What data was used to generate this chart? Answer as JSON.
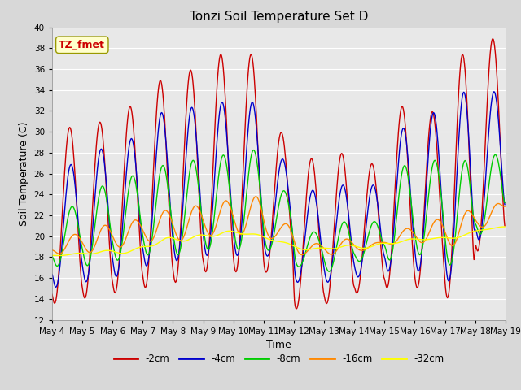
{
  "title": "Tonzi Soil Temperature Set D",
  "xlabel": "Time",
  "ylabel": "Soil Temperature (C)",
  "annotation_text": "TZ_fmet",
  "annotation_color": "#cc0000",
  "annotation_bg": "#ffffcc",
  "ylim": [
    12,
    40
  ],
  "yticks": [
    12,
    14,
    16,
    18,
    20,
    22,
    24,
    26,
    28,
    30,
    32,
    34,
    36,
    38,
    40
  ],
  "line_colors": {
    "-2cm": "#cc0000",
    "-4cm": "#0000cc",
    "-8cm": "#00cc00",
    "-16cm": "#ff8800",
    "-32cm": "#ffff00"
  },
  "bg_color": "#d8d8d8",
  "plot_bg": "#e8e8e8",
  "grid_color": "#ffffff",
  "n_days": 15,
  "start_day": 4,
  "points_per_day": 48,
  "peak_hour": 14,
  "trough_hour": 5,
  "day_peaks": {
    "-2cm": [
      30.5,
      31.0,
      32.5,
      35.0,
      36.0,
      37.5,
      37.5,
      30.0,
      27.5,
      28.0,
      27.0,
      32.5,
      32.0,
      37.5,
      39.0
    ],
    "-4cm": [
      27.0,
      28.5,
      29.5,
      32.0,
      32.5,
      33.0,
      33.0,
      27.5,
      24.5,
      25.0,
      25.0,
      30.5,
      32.0,
      34.0,
      34.0
    ],
    "-8cm": [
      23.0,
      25.0,
      26.0,
      27.0,
      27.5,
      28.0,
      28.5,
      24.5,
      20.5,
      21.5,
      21.5,
      27.0,
      27.5,
      27.5,
      28.0
    ],
    "-16cm": [
      20.5,
      21.5,
      22.0,
      23.0,
      23.5,
      24.0,
      24.5,
      21.5,
      19.5,
      20.0,
      19.5,
      21.0,
      22.0,
      23.0,
      23.5
    ],
    "-32cm": [
      18.5,
      19.0,
      19.0,
      20.5,
      20.5,
      21.0,
      20.5,
      19.5,
      19.0,
      19.5,
      19.5,
      20.0,
      20.0,
      20.5,
      21.0
    ]
  },
  "day_troughs": {
    "-2cm": [
      13.5,
      14.0,
      14.5,
      15.0,
      15.5,
      16.5,
      16.5,
      16.5,
      13.0,
      13.5,
      14.5,
      15.0,
      15.0,
      14.0,
      18.5
    ],
    "-4cm": [
      15.0,
      15.5,
      16.0,
      17.0,
      17.5,
      18.0,
      18.0,
      18.0,
      15.5,
      15.5,
      16.0,
      16.5,
      16.5,
      15.5,
      19.5
    ],
    "-8cm": [
      17.0,
      17.0,
      17.5,
      18.0,
      18.0,
      18.5,
      18.5,
      18.5,
      17.0,
      16.5,
      17.5,
      17.5,
      18.0,
      17.0,
      20.0
    ],
    "-16cm": [
      18.0,
      18.0,
      18.5,
      19.0,
      19.0,
      19.5,
      19.5,
      19.5,
      18.0,
      18.0,
      18.5,
      19.0,
      19.0,
      18.5,
      20.5
    ],
    "-32cm": [
      18.0,
      18.0,
      18.0,
      18.5,
      19.0,
      19.5,
      20.0,
      19.5,
      18.5,
      18.5,
      18.5,
      19.0,
      19.5,
      19.5,
      20.5
    ]
  },
  "phase_shift_hours": {
    "-2cm": 0,
    "-4cm": 1,
    "-8cm": 2,
    "-16cm": 4,
    "-32cm": 6
  },
  "smooth_sigma": {
    "-2cm": 0.5,
    "-4cm": 0.8,
    "-8cm": 1.2,
    "-16cm": 3.0,
    "-32cm": 6.0
  }
}
